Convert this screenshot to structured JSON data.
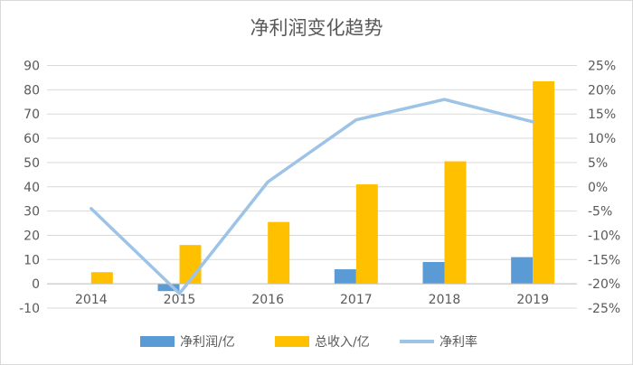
{
  "chart_data": {
    "type": "bar",
    "title": "净利润变化趋势",
    "categories": [
      "2014",
      "2015",
      "2016",
      "2017",
      "2018",
      "2019"
    ],
    "series": [
      {
        "name": "净利润/亿",
        "type": "bar",
        "axis": "left",
        "color": "#5B9BD5",
        "values": [
          0,
          -3,
          0,
          6,
          9,
          11
        ]
      },
      {
        "name": "总收入/亿",
        "type": "bar",
        "axis": "left",
        "color": "#FFC000",
        "values": [
          4.8,
          16,
          25.5,
          41,
          50.5,
          83.5
        ]
      },
      {
        "name": "净利率",
        "type": "line",
        "axis": "right",
        "color": "#9DC3E6",
        "values": [
          -4.5,
          -22,
          1,
          13.8,
          18,
          13.4
        ]
      }
    ],
    "ylim_left": [
      -10,
      90
    ],
    "yticks_left": [
      "-10",
      "0",
      "10",
      "20",
      "30",
      "40",
      "50",
      "60",
      "70",
      "80",
      "90"
    ],
    "ylim_right": [
      -25,
      25
    ],
    "yticks_right": [
      "-25%",
      "-20%",
      "-15%",
      "-10%",
      "-5%",
      "0%",
      "5%",
      "10%",
      "15%",
      "20%",
      "25%"
    ],
    "grid": true,
    "legend": "bottom"
  }
}
